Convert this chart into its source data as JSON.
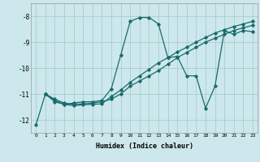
{
  "title": "",
  "xlabel": "Humidex (Indice chaleur)",
  "bg_color": "#cce8ec",
  "grid_color": "#aacccc",
  "line_color": "#1a6b6b",
  "xlim": [
    -0.5,
    23.5
  ],
  "ylim": [
    -12.5,
    -7.5
  ],
  "yticks": [
    -12,
    -11,
    -10,
    -9,
    -8
  ],
  "xticks": [
    0,
    1,
    2,
    3,
    4,
    5,
    6,
    7,
    8,
    9,
    10,
    11,
    12,
    13,
    14,
    15,
    16,
    17,
    18,
    19,
    20,
    21,
    22,
    23
  ],
  "series1_x": [
    0,
    1,
    2,
    3,
    4,
    5,
    6,
    7,
    8,
    9,
    10,
    11,
    12,
    13,
    14,
    15,
    16,
    17,
    18,
    19,
    20,
    21,
    22,
    23
  ],
  "series1_y": [
    -12.2,
    -11.0,
    -11.3,
    -11.4,
    -11.35,
    -11.3,
    -11.3,
    -11.25,
    -10.8,
    -9.5,
    -8.2,
    -8.05,
    -8.05,
    -8.3,
    -9.6,
    -9.55,
    -10.3,
    -10.3,
    -11.55,
    -10.7,
    -8.55,
    -8.7,
    -8.55,
    -8.6
  ],
  "series2_x": [
    1,
    2,
    3,
    4,
    5,
    6,
    7,
    8,
    9,
    10,
    11,
    12,
    13,
    14,
    15,
    16,
    17,
    18,
    19,
    20,
    21,
    22,
    23
  ],
  "series2_y": [
    -11.0,
    -11.2,
    -11.35,
    -11.4,
    -11.38,
    -11.35,
    -11.3,
    -11.2,
    -11.0,
    -10.7,
    -10.5,
    -10.3,
    -10.1,
    -9.85,
    -9.6,
    -9.4,
    -9.2,
    -9.0,
    -8.85,
    -8.7,
    -8.55,
    -8.45,
    -8.35
  ],
  "series3_x": [
    1,
    2,
    3,
    4,
    5,
    6,
    7,
    8,
    9,
    10,
    11,
    12,
    13,
    14,
    15,
    16,
    17,
    18,
    19,
    20,
    21,
    22,
    23
  ],
  "series3_y": [
    -11.0,
    -11.25,
    -11.4,
    -11.45,
    -11.42,
    -11.4,
    -11.38,
    -11.1,
    -10.85,
    -10.55,
    -10.3,
    -10.05,
    -9.8,
    -9.6,
    -9.38,
    -9.2,
    -9.0,
    -8.82,
    -8.65,
    -8.52,
    -8.4,
    -8.3,
    -8.2
  ]
}
